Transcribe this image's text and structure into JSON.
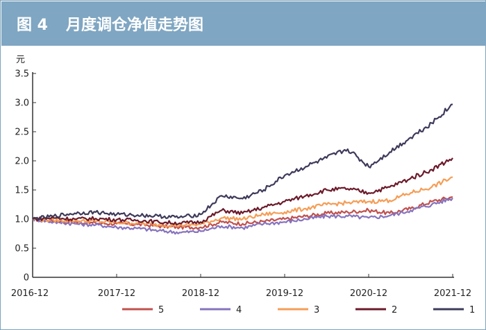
{
  "header": {
    "figure_number": "图 4",
    "title": "月度调仓净值走势图"
  },
  "chart_data": {
    "type": "line",
    "title": "月度调仓净值走势图",
    "ylabel": "元",
    "xlabel": "",
    "ylim": [
      0,
      3.5
    ],
    "yticks": [
      "0",
      "0.5",
      "1.0",
      "1.5",
      "2.0",
      "2.5",
      "3.0",
      "3.5"
    ],
    "xlim": [
      "2016-12",
      "2021-12"
    ],
    "xticks": [
      "2016-12",
      "2017-12",
      "2018-12",
      "2019-12",
      "2020-12",
      "2021-12"
    ],
    "grid": false,
    "legend_position": "bottom",
    "x": [
      "2016-12",
      "2017-03",
      "2017-06",
      "2017-09",
      "2017-12",
      "2018-03",
      "2018-06",
      "2018-09",
      "2018-12",
      "2019-03",
      "2019-06",
      "2019-09",
      "2019-12",
      "2020-03",
      "2020-06",
      "2020-09",
      "2020-12",
      "2021-03",
      "2021-06",
      "2021-09",
      "2021-12"
    ],
    "series": [
      {
        "name": "5",
        "color": "#c0504d",
        "values": [
          1.0,
          0.97,
          0.95,
          0.93,
          0.92,
          0.91,
          0.88,
          0.86,
          0.86,
          0.95,
          0.92,
          0.96,
          1.0,
          1.05,
          1.1,
          1.12,
          1.15,
          1.1,
          1.18,
          1.3,
          1.38
        ]
      },
      {
        "name": "4",
        "color": "#8673bd",
        "values": [
          1.0,
          0.95,
          0.92,
          0.9,
          0.86,
          0.84,
          0.8,
          0.77,
          0.79,
          0.88,
          0.85,
          0.92,
          0.95,
          1.0,
          1.05,
          1.05,
          1.02,
          1.06,
          1.15,
          1.25,
          1.36
        ]
      },
      {
        "name": "3",
        "color": "#f59d56",
        "values": [
          1.0,
          0.98,
          0.97,
          0.96,
          0.94,
          0.93,
          0.9,
          0.89,
          0.91,
          1.02,
          1.0,
          1.08,
          1.12,
          1.18,
          1.25,
          1.28,
          1.3,
          1.32,
          1.45,
          1.55,
          1.72
        ]
      },
      {
        "name": "2",
        "color": "#6b1a2a",
        "values": [
          1.0,
          1.02,
          1.0,
          1.01,
          0.99,
          0.98,
          0.95,
          0.93,
          0.95,
          1.15,
          1.1,
          1.2,
          1.3,
          1.4,
          1.5,
          1.52,
          1.45,
          1.55,
          1.7,
          1.85,
          2.05
        ]
      },
      {
        "name": "1",
        "color": "#3e3a5a",
        "values": [
          1.0,
          1.05,
          1.1,
          1.12,
          1.08,
          1.07,
          1.05,
          1.03,
          1.08,
          1.4,
          1.35,
          1.5,
          1.75,
          1.9,
          2.05,
          2.2,
          1.9,
          2.15,
          2.4,
          2.65,
          2.97
        ]
      }
    ]
  }
}
